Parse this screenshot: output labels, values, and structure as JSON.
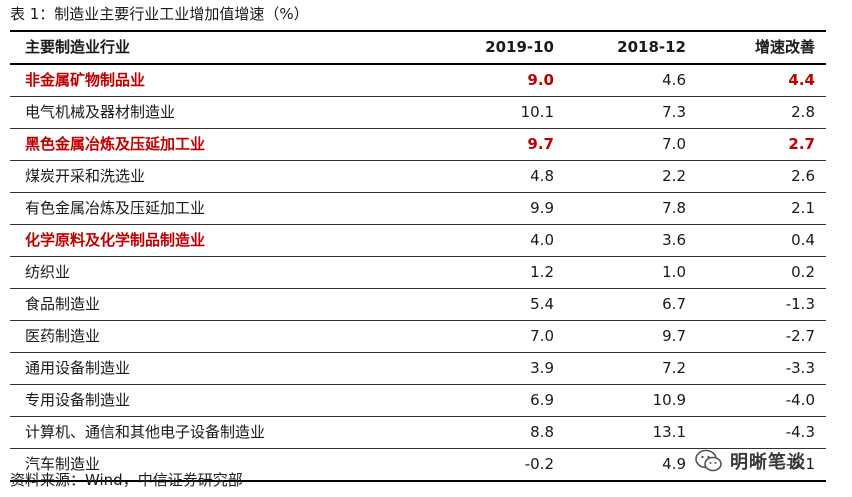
{
  "caption": "表 1：制造业主要行业工业增加值增速（%）",
  "columns": [
    "主要制造业行业",
    "2019-10",
    "2018-12",
    "增速改善"
  ],
  "rows": [
    {
      "name": "非金属矿物制品业",
      "v1": "9.0",
      "v2": "4.6",
      "v3": "4.4"
    },
    {
      "name": "电气机械及器材制造业",
      "v1": "10.1",
      "v2": "7.3",
      "v3": "2.8"
    },
    {
      "name": "黑色金属冶炼及压延加工业",
      "v1": "9.7",
      "v2": "7.0",
      "v3": "2.7"
    },
    {
      "name": "煤炭开采和洗选业",
      "v1": "4.8",
      "v2": "2.2",
      "v3": "2.6"
    },
    {
      "name": "有色金属冶炼及压延加工业",
      "v1": "9.9",
      "v2": "7.8",
      "v3": "2.1"
    },
    {
      "name": "化学原料及化学制品制造业",
      "v1": "4.0",
      "v2": "3.6",
      "v3": "0.4"
    },
    {
      "name": "纺织业",
      "v1": "1.2",
      "v2": "1.0",
      "v3": "0.2"
    },
    {
      "name": "食品制造业",
      "v1": "5.4",
      "v2": "6.7",
      "v3": "-1.3"
    },
    {
      "name": "医药制造业",
      "v1": "7.0",
      "v2": "9.7",
      "v3": "-2.7"
    },
    {
      "name": "通用设备制造业",
      "v1": "3.9",
      "v2": "7.2",
      "v3": "-3.3"
    },
    {
      "name": "专用设备制造业",
      "v1": "6.9",
      "v2": "10.9",
      "v3": "-4.0"
    },
    {
      "name": "计算机、通信和其他电子设备制造业",
      "v1": "8.8",
      "v2": "13.1",
      "v3": "-4.3"
    },
    {
      "name": "汽车制造业",
      "v1": "-0.2",
      "v2": "4.9",
      "v3": "-5.1"
    }
  ],
  "source": "资料来源：Wind，中信证券研究部",
  "watermark": {
    "text": "明晰笔谈",
    "icon": "wechat-icon"
  },
  "colors": {
    "highlight": "#c00000",
    "text": "#1a1a1a"
  }
}
